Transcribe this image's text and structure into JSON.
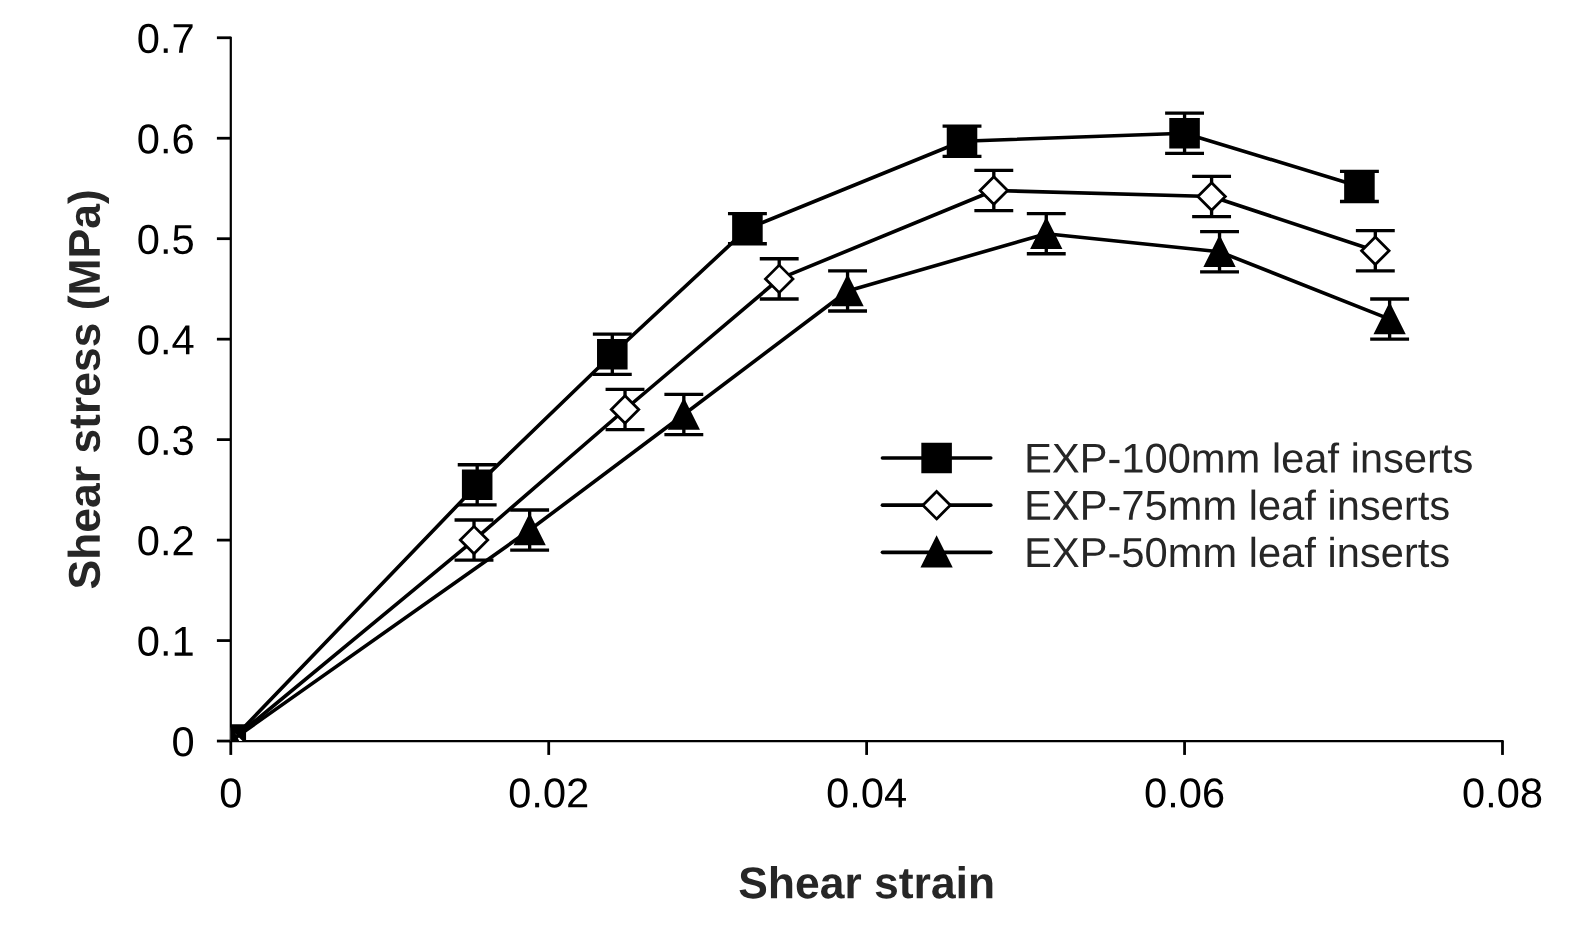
{
  "chart_data": {
    "type": "line",
    "xlabel": "Shear strain",
    "ylabel": "Shear stress (MPa)",
    "xlim": [
      0,
      0.08
    ],
    "xticks": [
      0,
      0.02,
      0.04,
      0.06,
      0.08
    ],
    "ylim": [
      0,
      0.7
    ],
    "yticks": [
      0,
      0.1,
      0.2,
      0.3,
      0.4,
      0.5,
      0.6,
      0.7
    ],
    "grid": false,
    "legend": "right",
    "series": [
      {
        "name": "EXP-100mm leaf inserts",
        "color": "#000000",
        "marker": "square",
        "x": [
          0,
          0.0155,
          0.024,
          0.0325,
          0.046,
          0.06,
          0.071
        ],
        "values": [
          0,
          0.255,
          0.385,
          0.51,
          0.597,
          0.605,
          0.552
        ],
        "errors": [
          0.015,
          0.02,
          0.02,
          0.015,
          0.015,
          0.02,
          0.015
        ]
      },
      {
        "name": "EXP-75mm leaf inserts",
        "color": "#000000",
        "marker": "diamond",
        "x": [
          0,
          0.0153,
          0.0248,
          0.0345,
          0.048,
          0.0617,
          0.072
        ],
        "values": [
          0,
          0.2,
          0.33,
          0.46,
          0.548,
          0.542,
          0.488
        ],
        "errors": [
          null,
          0.02,
          0.02,
          0.02,
          0.02,
          0.02,
          0.02
        ]
      },
      {
        "name": "EXP-50mm leaf inserts",
        "color": "#000000",
        "marker": "triangle",
        "x": [
          0,
          0.0188,
          0.0285,
          0.0388,
          0.0513,
          0.0622,
          0.0729
        ],
        "values": [
          0,
          0.21,
          0.325,
          0.448,
          0.505,
          0.487,
          0.42
        ],
        "errors": [
          null,
          0.02,
          0.02,
          0.02,
          0.02,
          0.02,
          0.02
        ]
      }
    ]
  }
}
